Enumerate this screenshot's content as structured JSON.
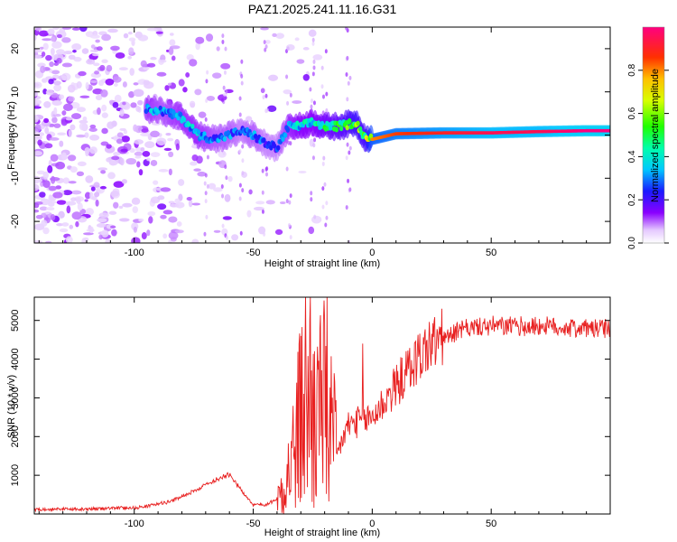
{
  "chart_data": [
    {
      "type": "heatmap",
      "title": "PAZ1.2025.241.11.16.G31",
      "xlabel": "Height of straight line (km)",
      "ylabel": "Frequency (Hz)",
      "xlim": [
        -142,
        100
      ],
      "ylim": [
        -25,
        25
      ],
      "xticks": [
        -100,
        -50,
        0,
        50
      ],
      "yticks": [
        -20,
        -10,
        0,
        10,
        20
      ],
      "colorbar": {
        "label": "Normalized spectral amplitude",
        "range": [
          0,
          1
        ],
        "ticks": [
          "0.0",
          "0.2",
          "0.4",
          "0.6",
          "0.8"
        ],
        "tick_values": [
          0,
          0.2,
          0.4,
          0.6,
          0.8
        ]
      },
      "ridge": {
        "x": [
          -95,
          -88,
          -80,
          -73,
          -66,
          -60,
          -55,
          -50,
          -45,
          -40,
          -35,
          -30,
          -25,
          -20,
          -15,
          -10,
          -7,
          -3,
          0,
          10,
          30,
          50,
          70,
          90,
          100
        ],
        "freq": [
          6,
          5.5,
          4,
          0,
          -1,
          0,
          1,
          0,
          -2,
          -3,
          2,
          2,
          3,
          2,
          2,
          2.5,
          3,
          -0.5,
          -1,
          0.3,
          0.5,
          0.5,
          0.8,
          1,
          1
        ],
        "amplitude": [
          0.35,
          0.3,
          0.35,
          0.35,
          0.3,
          0.3,
          0.25,
          0.3,
          0.25,
          0.25,
          0.35,
          0.4,
          0.4,
          0.45,
          0.5,
          0.55,
          0.6,
          0.55,
          0.8,
          0.85,
          0.9,
          0.95,
          0.95,
          1.0,
          1.0
        ]
      }
    },
    {
      "type": "line",
      "xlabel": "Height of straight line (km)",
      "ylabel": "SNR (10 * v/v)",
      "xlim": [
        -142,
        100
      ],
      "ylim": [
        0,
        5600
      ],
      "xticks": [
        -100,
        -50,
        0,
        50
      ],
      "yticks": [
        1000,
        2000,
        3000,
        4000,
        5000
      ],
      "color": "#e82020",
      "series": [
        {
          "name": "SNR",
          "x": [
            -142,
            -130,
            -120,
            -110,
            -100,
            -95,
            -90,
            -85,
            -80,
            -75,
            -70,
            -65,
            -60,
            -55,
            -50,
            -45,
            -40,
            -35,
            -32,
            -30,
            -28,
            -25,
            -23,
            -20,
            -18,
            -15,
            -12,
            -10,
            -5,
            0,
            5,
            10,
            15,
            20,
            25,
            30,
            35,
            40,
            50,
            60,
            70,
            80,
            90,
            100
          ],
          "y": [
            120,
            130,
            120,
            150,
            160,
            200,
            260,
            320,
            450,
            600,
            750,
            900,
            1050,
            600,
            250,
            230,
            400,
            1100,
            1800,
            2500,
            3000,
            2600,
            2400,
            2700,
            2200,
            1500,
            2000,
            2300,
            2400,
            2500,
            2900,
            3300,
            3700,
            4100,
            4400,
            4550,
            4700,
            4800,
            4850,
            4850,
            4850,
            4820,
            4800,
            4780
          ]
        }
      ],
      "spikes": [
        {
          "x": -26,
          "y": 5600
        },
        {
          "x": -19,
          "y": 5600
        },
        {
          "x": -30,
          "y": 4600
        },
        {
          "x": -22,
          "y": 4800
        },
        {
          "x": -4,
          "y": 4400
        }
      ]
    }
  ]
}
